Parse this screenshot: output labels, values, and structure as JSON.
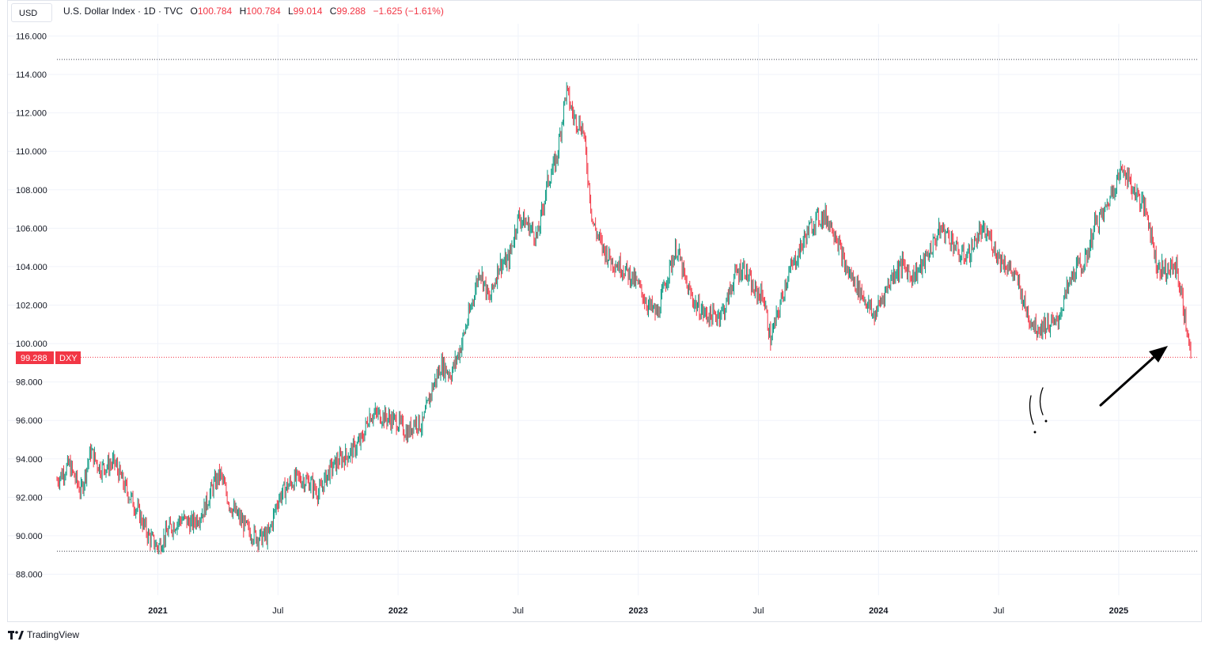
{
  "toolbar": {
    "currency_label": "USD"
  },
  "legend": {
    "title": "U.S. Dollar Index · 1D · TVC",
    "open_label": "O",
    "open_value": "100.784",
    "high_label": "H",
    "high_value": "100.784",
    "low_label": "L",
    "low_value": "99.014",
    "close_label": "C",
    "close_value": "99.288",
    "change": "−1.625 (−1.61%)"
  },
  "price_label": {
    "value": "99.288",
    "symbol": "DXY",
    "color": "#f23645"
  },
  "branding": {
    "name": "TradingView",
    "logo_icon": "tradingview-logo-icon"
  },
  "annotations": {
    "arrow_icon": "arrow-icon",
    "scribble_icon": "hand-drawn-scribble-icon"
  },
  "colors": {
    "up": "#089981",
    "down": "#f23645",
    "grid": "#f0f3fa",
    "axis_text": "#131722"
  },
  "chart_data": {
    "type": "candlestick",
    "title": "U.S. Dollar Index",
    "ylim": [
      87,
      116.5
    ],
    "yticks": [
      "88.000",
      "90.000",
      "92.000",
      "94.000",
      "96.000",
      "98.000",
      "100.000",
      "102.000",
      "104.000",
      "106.000",
      "108.000",
      "110.000",
      "112.000",
      "114.000",
      "116.000"
    ],
    "xticks": [
      {
        "label": "2021",
        "t": 2021.0,
        "year": true
      },
      {
        "label": "Jul",
        "t": 2021.5,
        "year": false
      },
      {
        "label": "2022",
        "t": 2022.0,
        "year": true
      },
      {
        "label": "Jul",
        "t": 2022.5,
        "year": false
      },
      {
        "label": "2023",
        "t": 2023.0,
        "year": true
      },
      {
        "label": "Jul",
        "t": 2023.5,
        "year": false
      },
      {
        "label": "2024",
        "t": 2024.0,
        "year": true
      },
      {
        "label": "Jul",
        "t": 2024.5,
        "year": false
      },
      {
        "label": "2025",
        "t": 2025.0,
        "year": true
      }
    ],
    "xlim": [
      2020.58,
      2025.3
    ],
    "reference_lines": [
      {
        "value": 114.78,
        "style": "dotted",
        "color": "#434651"
      },
      {
        "value": 89.2,
        "style": "dotted",
        "color": "#434651"
      },
      {
        "value": 99.288,
        "style": "dotted",
        "color": "#f23645"
      }
    ],
    "series": [
      {
        "points": [
          [
            2020.58,
            92.9
          ],
          [
            2020.63,
            93.7
          ],
          [
            2020.68,
            92.3
          ],
          [
            2020.72,
            94.4
          ],
          [
            2020.76,
            93.5
          ],
          [
            2020.82,
            93.8
          ],
          [
            2020.86,
            92.6
          ],
          [
            2020.92,
            91.2
          ],
          [
            2020.96,
            90.0
          ],
          [
            2021.0,
            89.4
          ],
          [
            2021.05,
            90.4
          ],
          [
            2021.1,
            90.9
          ],
          [
            2021.14,
            90.6
          ],
          [
            2021.19,
            91.3
          ],
          [
            2021.23,
            92.6
          ],
          [
            2021.26,
            93.2
          ],
          [
            2021.3,
            91.6
          ],
          [
            2021.34,
            90.9
          ],
          [
            2021.38,
            90.2
          ],
          [
            2021.42,
            89.9
          ],
          [
            2021.46,
            90.0
          ],
          [
            2021.5,
            91.9
          ],
          [
            2021.54,
            92.6
          ],
          [
            2021.58,
            93.0
          ],
          [
            2021.63,
            92.8
          ],
          [
            2021.67,
            92.2
          ],
          [
            2021.71,
            93.3
          ],
          [
            2021.75,
            93.9
          ],
          [
            2021.8,
            94.3
          ],
          [
            2021.85,
            95.0
          ],
          [
            2021.88,
            96.3
          ],
          [
            2021.92,
            96.3
          ],
          [
            2021.96,
            96.1
          ],
          [
            2022.0,
            95.9
          ],
          [
            2022.04,
            95.3
          ],
          [
            2022.07,
            96.0
          ],
          [
            2022.1,
            95.7
          ],
          [
            2022.14,
            97.6
          ],
          [
            2022.18,
            98.9
          ],
          [
            2022.22,
            98.4
          ],
          [
            2022.26,
            99.8
          ],
          [
            2022.3,
            101.7
          ],
          [
            2022.34,
            103.9
          ],
          [
            2022.38,
            102.2
          ],
          [
            2022.42,
            104.1
          ],
          [
            2022.46,
            104.3
          ],
          [
            2022.5,
            106.6
          ],
          [
            2022.54,
            106.2
          ],
          [
            2022.58,
            105.5
          ],
          [
            2022.62,
            108.3
          ],
          [
            2022.66,
            109.6
          ],
          [
            2022.7,
            113.2
          ],
          [
            2022.73,
            111.8
          ],
          [
            2022.77,
            111.2
          ],
          [
            2022.81,
            106.3
          ],
          [
            2022.85,
            105.0
          ],
          [
            2022.89,
            104.3
          ],
          [
            2022.93,
            104.0
          ],
          [
            2022.97,
            103.5
          ],
          [
            2023.0,
            103.0
          ],
          [
            2023.04,
            102.0
          ],
          [
            2023.08,
            101.5
          ],
          [
            2023.12,
            103.5
          ],
          [
            2023.16,
            105.0
          ],
          [
            2023.2,
            103.0
          ],
          [
            2023.24,
            102.0
          ],
          [
            2023.28,
            101.5
          ],
          [
            2023.32,
            101.4
          ],
          [
            2023.36,
            101.8
          ],
          [
            2023.4,
            103.5
          ],
          [
            2023.44,
            104.0
          ],
          [
            2023.48,
            102.7
          ],
          [
            2023.52,
            102.5
          ],
          [
            2023.55,
            100.2
          ],
          [
            2023.58,
            101.5
          ],
          [
            2023.62,
            103.5
          ],
          [
            2023.66,
            104.5
          ],
          [
            2023.7,
            105.7
          ],
          [
            2023.74,
            106.5
          ],
          [
            2023.78,
            106.6
          ],
          [
            2023.82,
            105.8
          ],
          [
            2023.86,
            104.0
          ],
          [
            2023.9,
            103.2
          ],
          [
            2023.94,
            102.4
          ],
          [
            2023.98,
            101.4
          ],
          [
            2024.02,
            102.5
          ],
          [
            2024.06,
            103.6
          ],
          [
            2024.1,
            104.1
          ],
          [
            2024.14,
            103.5
          ],
          [
            2024.18,
            104.0
          ],
          [
            2024.22,
            105.0
          ],
          [
            2024.26,
            106.0
          ],
          [
            2024.3,
            105.5
          ],
          [
            2024.34,
            104.5
          ],
          [
            2024.38,
            104.7
          ],
          [
            2024.42,
            105.8
          ],
          [
            2024.46,
            105.6
          ],
          [
            2024.5,
            104.5
          ],
          [
            2024.54,
            104.0
          ],
          [
            2024.58,
            103.2
          ],
          [
            2024.62,
            101.5
          ],
          [
            2024.66,
            100.8
          ],
          [
            2024.7,
            101.0
          ],
          [
            2024.74,
            101.0
          ],
          [
            2024.78,
            102.6
          ],
          [
            2024.82,
            103.9
          ],
          [
            2024.86,
            104.2
          ],
          [
            2024.9,
            106.2
          ],
          [
            2024.94,
            106.8
          ],
          [
            2024.98,
            108.2
          ],
          [
            2025.02,
            109.2
          ],
          [
            2025.05,
            108.2
          ],
          [
            2025.08,
            107.7
          ],
          [
            2025.12,
            106.7
          ],
          [
            2025.16,
            104.0
          ],
          [
            2025.2,
            103.8
          ],
          [
            2025.24,
            104.0
          ],
          [
            2025.27,
            101.8
          ],
          [
            2025.3,
            99.29
          ]
        ]
      }
    ]
  }
}
